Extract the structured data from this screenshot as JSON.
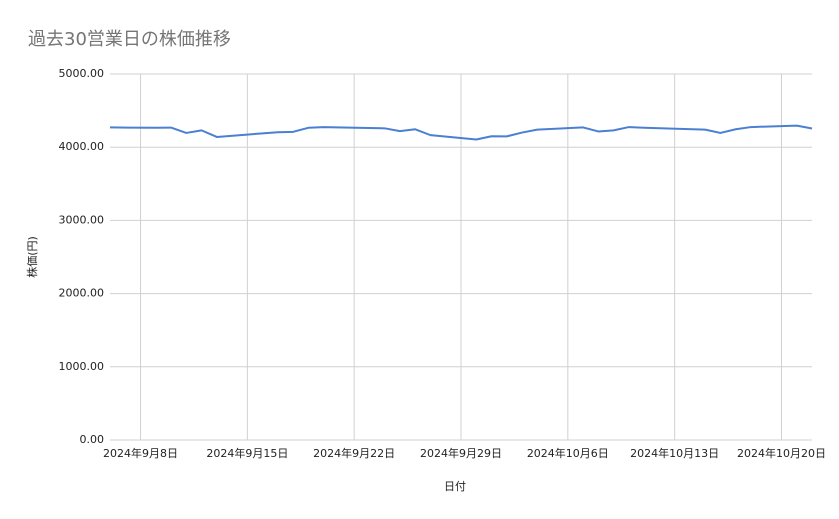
{
  "chart_data": {
    "type": "line",
    "title": "過去30営業日の株価推移",
    "xlabel": "日付",
    "ylabel": "株価(円)",
    "x": [
      "2024-09-06",
      "2024-09-09",
      "2024-09-10",
      "2024-09-11",
      "2024-09-12",
      "2024-09-13",
      "2024-09-17",
      "2024-09-18",
      "2024-09-19",
      "2024-09-20",
      "2024-09-24",
      "2024-09-25",
      "2024-09-26",
      "2024-09-27",
      "2024-09-30",
      "2024-10-01",
      "2024-10-02",
      "2024-10-03",
      "2024-10-04",
      "2024-10-07",
      "2024-10-08",
      "2024-10-09",
      "2024-10-10",
      "2024-10-11",
      "2024-10-15",
      "2024-10-16",
      "2024-10-17",
      "2024-10-18",
      "2024-10-21",
      "2024-10-22"
    ],
    "values": [
      4270,
      4265,
      4268,
      4195,
      4230,
      4140,
      4205,
      4210,
      4265,
      4275,
      4258,
      4220,
      4245,
      4165,
      4105,
      4150,
      4148,
      4200,
      4240,
      4270,
      4215,
      4230,
      4275,
      4265,
      4240,
      4195,
      4245,
      4275,
      4295,
      4255
    ],
    "color": "#4a7fd1",
    "xlim": [
      "2024-09-06",
      "2024-10-22"
    ],
    "xticks": [
      {
        "value": "2024-09-08",
        "label": "2024年9月8日"
      },
      {
        "value": "2024-09-15",
        "label": "2024年9月15日"
      },
      {
        "value": "2024-09-22",
        "label": "2024年9月22日"
      },
      {
        "value": "2024-09-29",
        "label": "2024年9月29日"
      },
      {
        "value": "2024-10-06",
        "label": "2024年10月6日"
      },
      {
        "value": "2024-10-13",
        "label": "2024年10月13日"
      },
      {
        "value": "2024-10-20",
        "label": "2024年10月20日"
      }
    ],
    "ylim": [
      0,
      5000
    ],
    "yticks": [
      {
        "value": 0,
        "label": "0.00"
      },
      {
        "value": 1000,
        "label": "1000.00"
      },
      {
        "value": 2000,
        "label": "2000.00"
      },
      {
        "value": 3000,
        "label": "3000.00"
      },
      {
        "value": 4000,
        "label": "4000.00"
      },
      {
        "value": 5000,
        "label": "5000.00"
      }
    ],
    "grid": true
  }
}
